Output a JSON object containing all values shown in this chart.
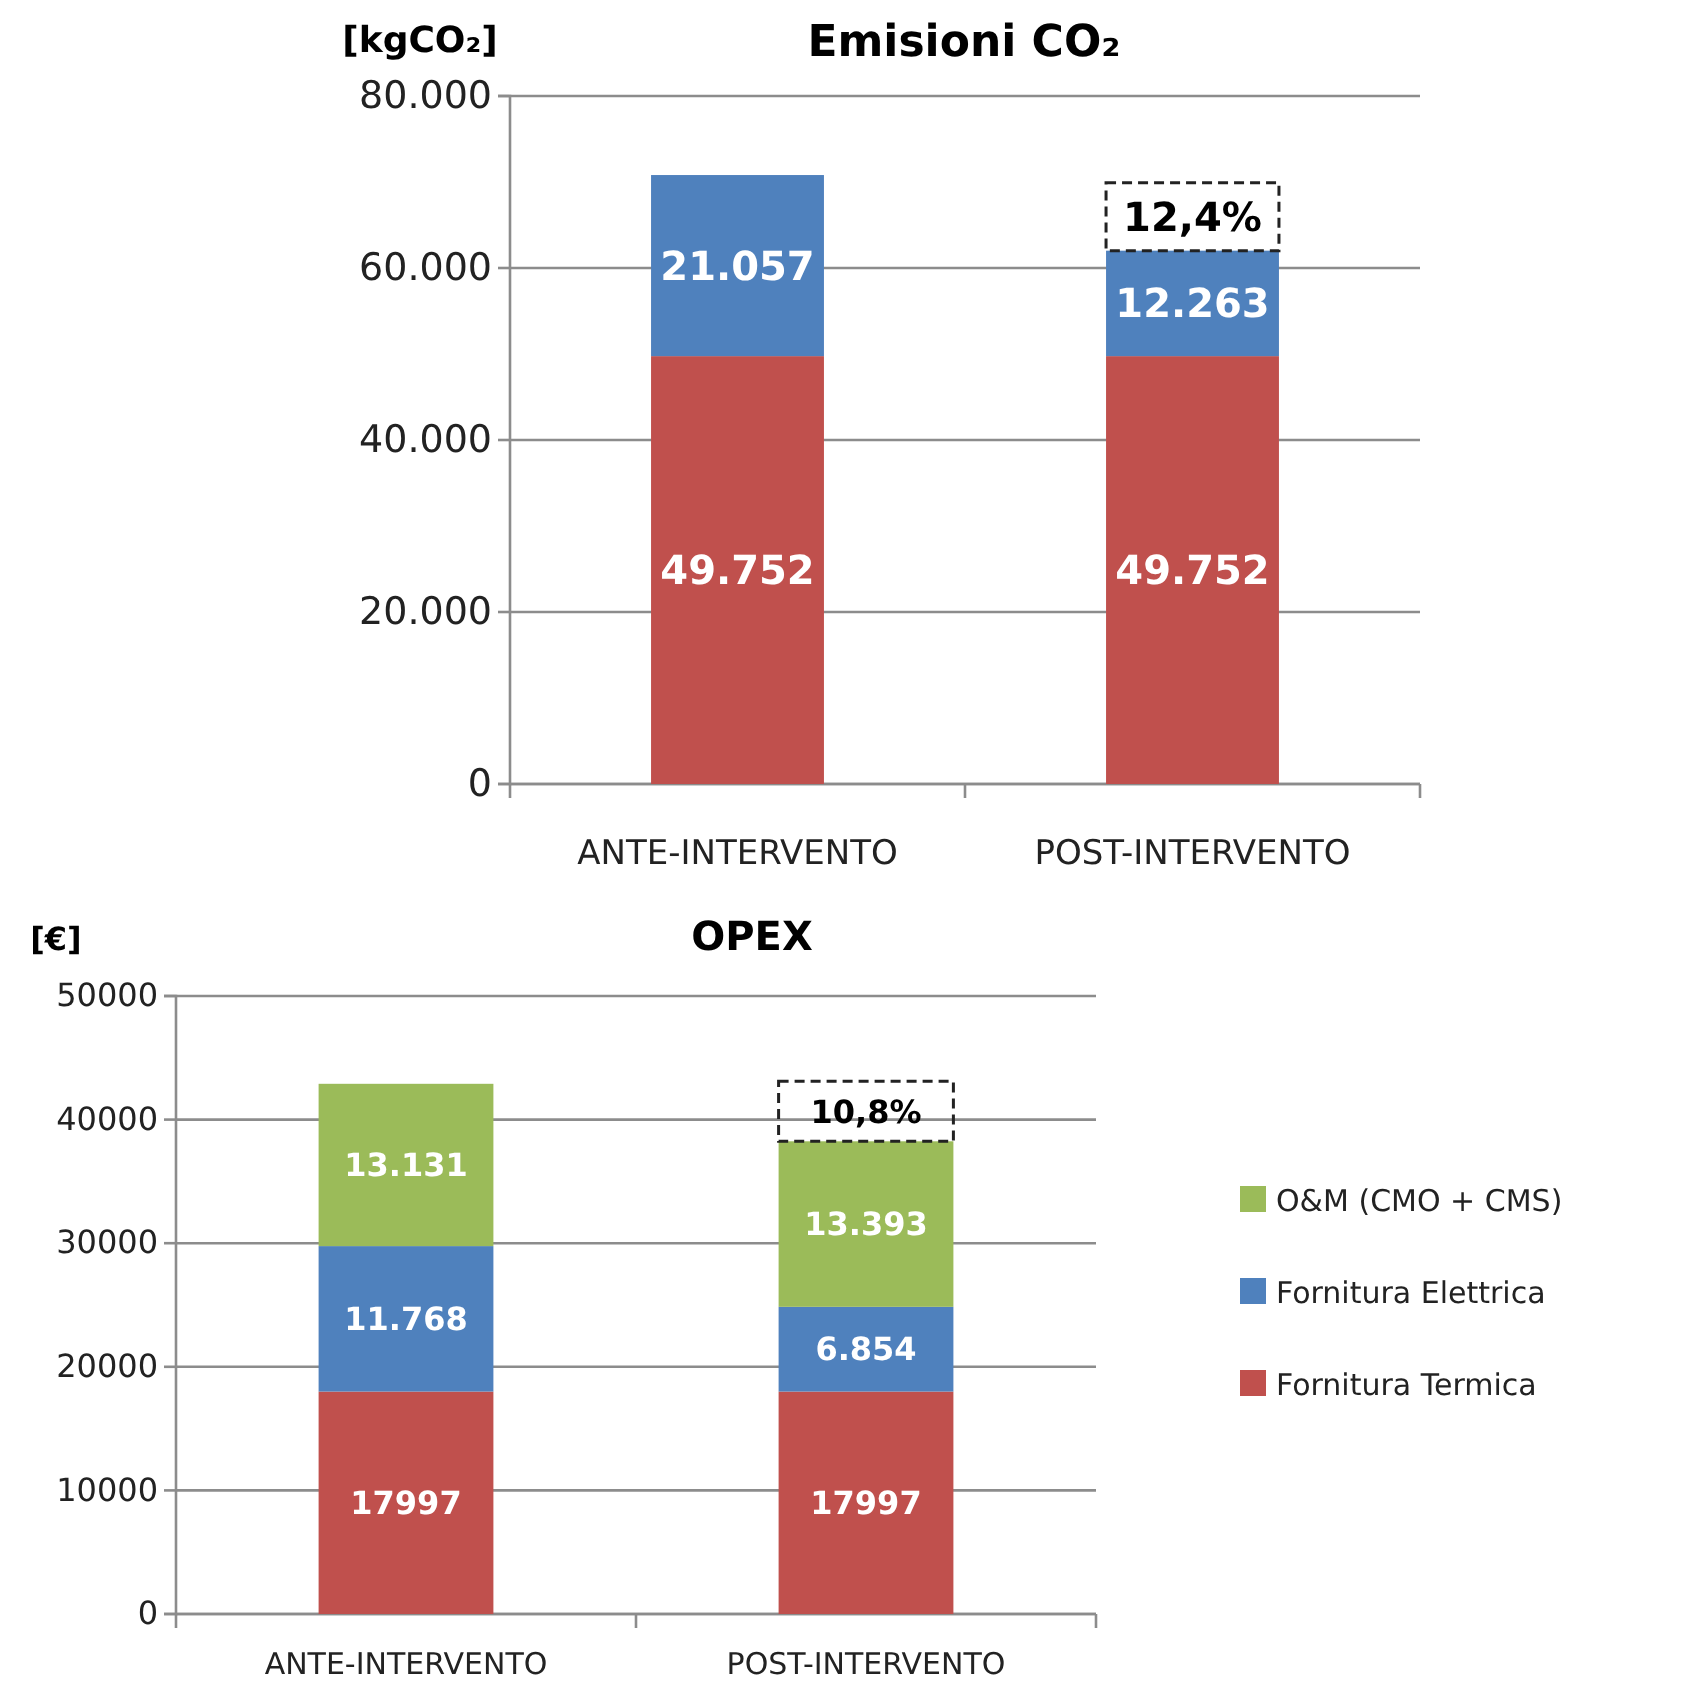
{
  "chart_data": [
    {
      "type": "bar",
      "title": "Emisioni CO₂",
      "ylabel": "[kgCO₂]",
      "stacked": true,
      "grid": "y",
      "legend": false,
      "categories": [
        "ANTE-INTERVENTO",
        "POST-INTERVENTO"
      ],
      "series": [
        {
          "color": "#c0504d",
          "values": [
            49752,
            49752
          ],
          "value_labels": [
            "49.752",
            "49.752"
          ]
        },
        {
          "color": "#4f81bd",
          "values": [
            21057,
            12263
          ],
          "value_labels": [
            "21.057",
            "12.263"
          ]
        }
      ],
      "ylim": [
        0,
        80000
      ],
      "yticks": [
        {
          "value": 0,
          "label": "0"
        },
        {
          "value": 20000,
          "label": "20.000"
        },
        {
          "value": 40000,
          "label": "40.000"
        },
        {
          "value": 60000,
          "label": "60.000"
        },
        {
          "value": 80000,
          "label": "80.000"
        }
      ],
      "annotations": [
        {
          "text": "12,4%",
          "x": "POST-INTERVENTO",
          "y": 62015
        }
      ]
    },
    {
      "type": "bar",
      "title": "OPEX",
      "ylabel": "[€]",
      "stacked": true,
      "grid": "y",
      "legend": "right",
      "categories": [
        "ANTE-INTERVENTO",
        "POST-INTERVENTO"
      ],
      "series": [
        {
          "name": "Fornitura Termica",
          "color": "#c0504d",
          "values": [
            17997,
            17997
          ],
          "value_labels": [
            "17997",
            "17997"
          ]
        },
        {
          "name": "Fornitura Elettrica",
          "color": "#4f81bd",
          "values": [
            11768,
            6854
          ],
          "value_labels": [
            "11.768",
            "6.854"
          ]
        },
        {
          "name": "O&M (CMO + CMS)",
          "color": "#9bbb59",
          "values": [
            13131,
            13393
          ],
          "value_labels": [
            "13.131",
            "13.393"
          ]
        }
      ],
      "ylim": [
        0,
        50000
      ],
      "yticks": [
        0,
        10000,
        20000,
        30000,
        40000,
        50000
      ],
      "annotations": [
        {
          "text": "10,8%",
          "x": "POST-INTERVENTO",
          "y": 38244
        }
      ]
    }
  ]
}
